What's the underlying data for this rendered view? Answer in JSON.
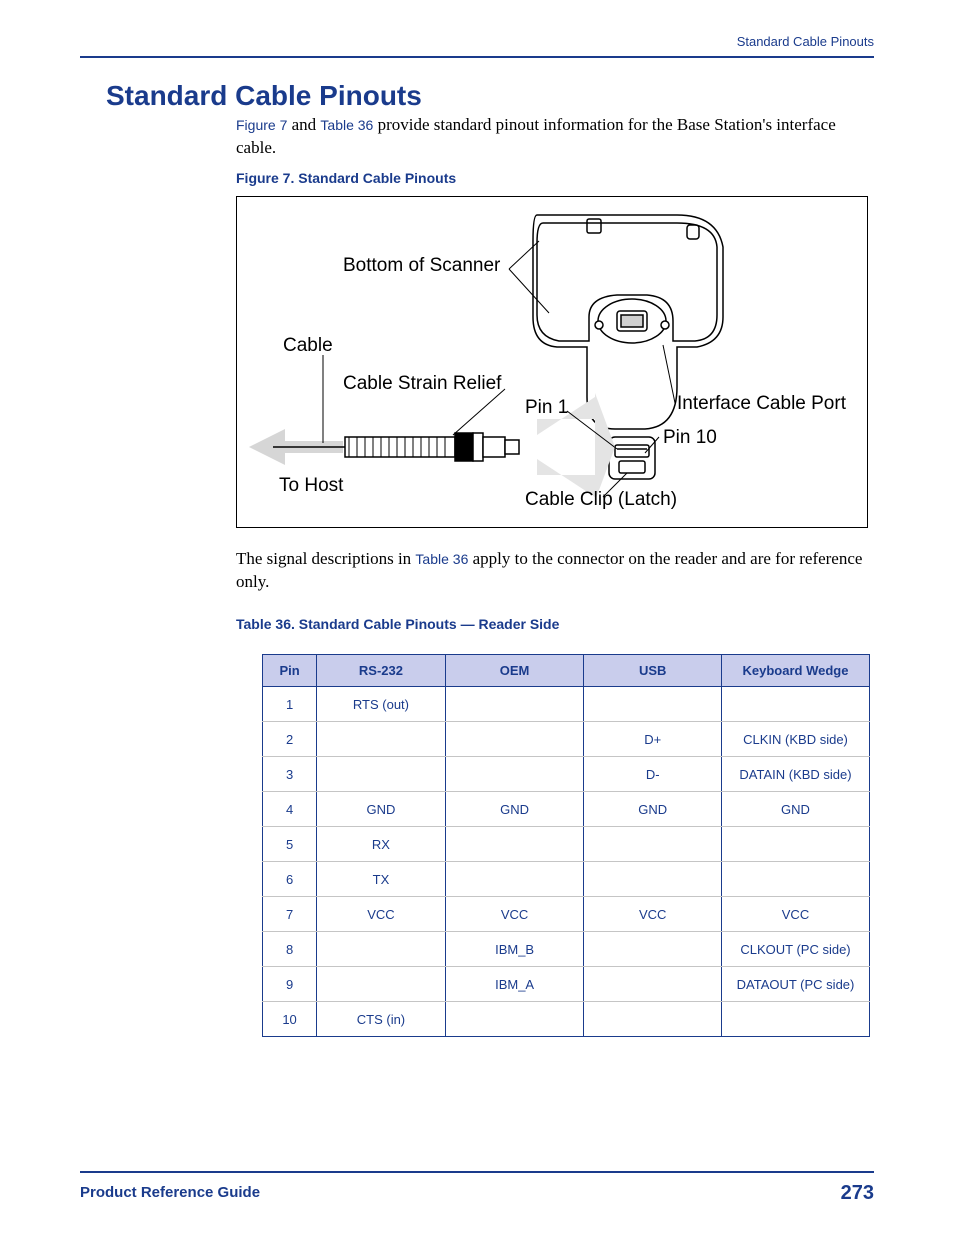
{
  "header": {
    "running_head": "Standard Cable Pinouts"
  },
  "title": "Standard Cable Pinouts",
  "intro": {
    "pre": "",
    "link1": "Figure 7",
    "mid1": " and ",
    "link2": "Table 36",
    "post": " provide standard pinout information for the Base Station's interface cable."
  },
  "figure": {
    "caption": "Figure 7. Standard Cable Pinouts",
    "labels": {
      "bottom_of_scanner": "Bottom of Scanner",
      "cable": "Cable",
      "cable_strain_relief": "Cable Strain Relief",
      "pin1": "Pin 1",
      "interface_cable_port": "Interface Cable Port",
      "pin10": "Pin 10",
      "to_host": "To Host",
      "cable_clip": "Cable Clip (Latch)"
    }
  },
  "after_fig": {
    "pre": "The signal descriptions in ",
    "link": "Table 36",
    "post": " apply to the connector on the reader and are for reference only."
  },
  "table": {
    "caption": "Table 36. Standard Cable Pinouts — Reader Side",
    "columns": [
      "Pin",
      "RS-232",
      "OEM",
      "USB",
      "Keyboard Wedge"
    ],
    "rows": [
      [
        "1",
        "RTS (out)",
        "",
        "",
        ""
      ],
      [
        "2",
        "",
        "",
        "D+",
        "CLKIN (KBD side)"
      ],
      [
        "3",
        "",
        "",
        "D-",
        "DATAIN (KBD side)"
      ],
      [
        "4",
        "GND",
        "GND",
        "GND",
        "GND"
      ],
      [
        "5",
        "RX",
        "",
        "",
        ""
      ],
      [
        "6",
        "TX",
        "",
        "",
        ""
      ],
      [
        "7",
        "VCC",
        "VCC",
        "VCC",
        "VCC"
      ],
      [
        "8",
        "",
        "IBM_B",
        "",
        "CLKOUT (PC side)"
      ],
      [
        "9",
        "",
        "IBM_A",
        "",
        "DATAOUT (PC side)"
      ],
      [
        "10",
        "CTS (in)",
        "",
        "",
        ""
      ]
    ],
    "header_bg": "#c9cdec",
    "border_color": "#1a3b8c",
    "text_color": "#1a3b8c"
  },
  "footer": {
    "left": "Product Reference Guide",
    "page_number": "273"
  }
}
